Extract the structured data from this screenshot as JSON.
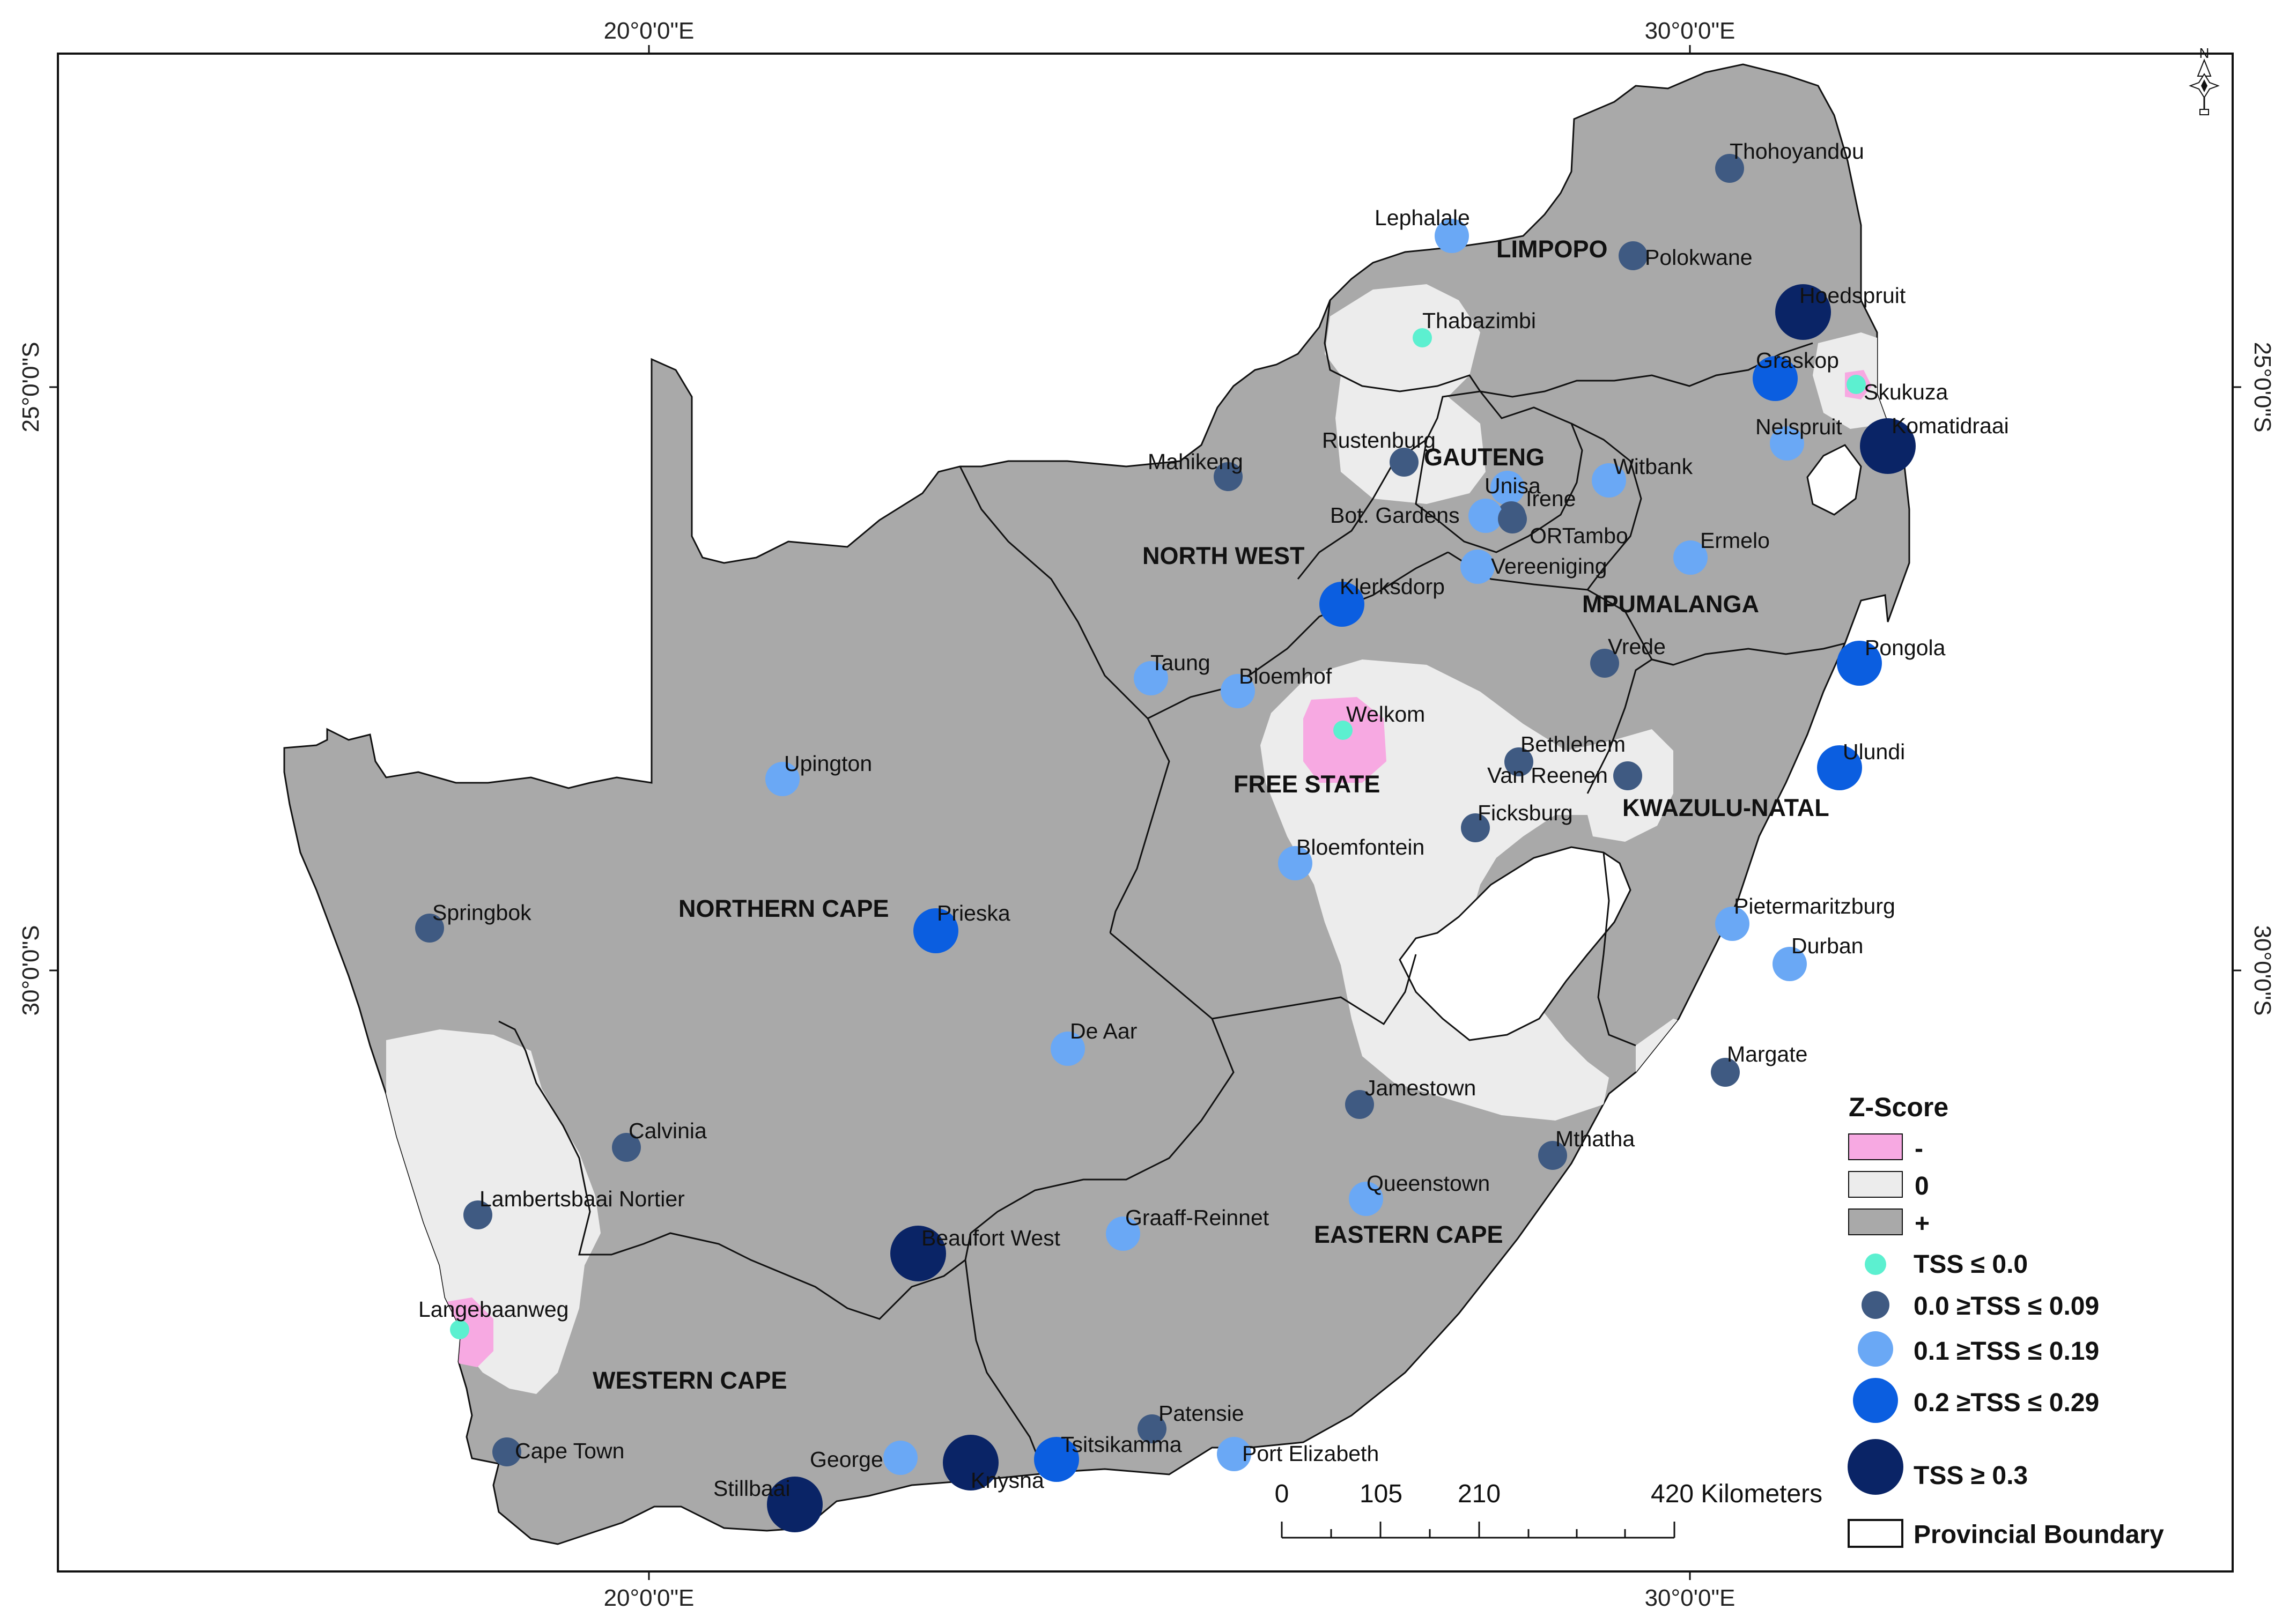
{
  "graticule": {
    "lon_labels": [
      "20°0'0\"E",
      "30°0'0\"E"
    ],
    "lat_labels": [
      "25°0'0\"S",
      "30°0'0\"S"
    ]
  },
  "north_arrow": {
    "label": "N"
  },
  "provinces": [
    {
      "id": "limpopo",
      "label": "LIMPOPO"
    },
    {
      "id": "gauteng",
      "label": "GAUTENG"
    },
    {
      "id": "north-west",
      "label": "NORTH WEST"
    },
    {
      "id": "mpumalanga",
      "label": "MPUMALANGA"
    },
    {
      "id": "free-state",
      "label": "FREE STATE"
    },
    {
      "id": "kwazulu-natal",
      "label": "KWAZULU-NATAL"
    },
    {
      "id": "northern-cape",
      "label": "NORTHERN CAPE"
    },
    {
      "id": "eastern-cape",
      "label": "EASTERN CAPE"
    },
    {
      "id": "western-cape",
      "label": "WESTERN CAPE"
    }
  ],
  "stations": [
    {
      "name": "Thohoyandou",
      "cls": 1
    },
    {
      "name": "Lephalale",
      "cls": 2
    },
    {
      "name": "Polokwane",
      "cls": 1
    },
    {
      "name": "Hoedspruit",
      "cls": 4
    },
    {
      "name": "Thabazimbi",
      "cls": 0
    },
    {
      "name": "Graskop",
      "cls": 3
    },
    {
      "name": "Skukuza",
      "cls": 0
    },
    {
      "name": "Komatidraai",
      "cls": 4
    },
    {
      "name": "Nelspruit",
      "cls": 2
    },
    {
      "name": "Mahikeng",
      "cls": 1
    },
    {
      "name": "Rustenburg",
      "cls": 1
    },
    {
      "name": "Unisa",
      "cls": 2
    },
    {
      "name": "Irene",
      "cls": 1
    },
    {
      "name": "Bot. Gardens",
      "cls": 2
    },
    {
      "name": "ORTambo",
      "cls": 1
    },
    {
      "name": "Witbank",
      "cls": 2
    },
    {
      "name": "Vereeniging",
      "cls": 2
    },
    {
      "name": "Ermelo",
      "cls": 2
    },
    {
      "name": "Klerksdorp",
      "cls": 3
    },
    {
      "name": "Taung",
      "cls": 2
    },
    {
      "name": "Bloemhof",
      "cls": 2
    },
    {
      "name": "Vrede",
      "cls": 1
    },
    {
      "name": "Pongola",
      "cls": 3
    },
    {
      "name": "Welkom",
      "cls": 0
    },
    {
      "name": "Bethlehem",
      "cls": 1
    },
    {
      "name": "Van Reenen",
      "cls": 1
    },
    {
      "name": "Ulundi",
      "cls": 3
    },
    {
      "name": "Upington",
      "cls": 2
    },
    {
      "name": "Ficksburg",
      "cls": 1
    },
    {
      "name": "Bloemfontein",
      "cls": 2
    },
    {
      "name": "Springbok",
      "cls": 1
    },
    {
      "name": "Prieska",
      "cls": 3
    },
    {
      "name": "Pietermaritzburg",
      "cls": 2
    },
    {
      "name": "Durban",
      "cls": 2
    },
    {
      "name": "De Aar",
      "cls": 2
    },
    {
      "name": "Margate",
      "cls": 1
    },
    {
      "name": "Jamestown",
      "cls": 1
    },
    {
      "name": "Calvinia",
      "cls": 1
    },
    {
      "name": "Mthatha",
      "cls": 1
    },
    {
      "name": "Lambertsbaai Nortier",
      "cls": 1
    },
    {
      "name": "Queenstown",
      "cls": 2
    },
    {
      "name": "Graaff-Reinnet",
      "cls": 2
    },
    {
      "name": "Beaufort West",
      "cls": 4
    },
    {
      "name": "Langebaanweg",
      "cls": 0
    },
    {
      "name": "Patensie",
      "cls": 1
    },
    {
      "name": "Cape Town",
      "cls": 1
    },
    {
      "name": "George",
      "cls": 2
    },
    {
      "name": "Knysna",
      "cls": 4
    },
    {
      "name": "Tsitsikamma",
      "cls": 3
    },
    {
      "name": "Port Elizabeth",
      "cls": 2
    },
    {
      "name": "Stillbaai",
      "cls": 4
    }
  ],
  "legend": {
    "title": "Z-Score",
    "zscore_classes": [
      {
        "label": "-",
        "color": "#f7a9e2"
      },
      {
        "label": "0",
        "color": "#ececec"
      },
      {
        "label": "+",
        "color": "#a9a9a9"
      }
    ],
    "tss_classes": [
      {
        "label": "TSS ≤ 0.0",
        "color": "#5cf0d0"
      },
      {
        "label": "0.0 ≥TSS ≤ 0.09",
        "color": "#3f5a82"
      },
      {
        "label": "0.1 ≥TSS ≤ 0.19",
        "color": "#6aa8f5"
      },
      {
        "label": "0.2 ≥TSS ≤ 0.29",
        "color": "#0b5ee0"
      },
      {
        "label": "TSS ≥ 0.3",
        "color": "#0a2466"
      }
    ],
    "boundary_label": "Provincial Boundary"
  },
  "scale_bar": {
    "ticks": [
      "0",
      "105",
      "210",
      "420 Kilometers"
    ]
  },
  "colors": {
    "positive": "#a9a9a9",
    "zero": "#ececec",
    "negative": "#f7a9e2",
    "outline": "#111111"
  }
}
